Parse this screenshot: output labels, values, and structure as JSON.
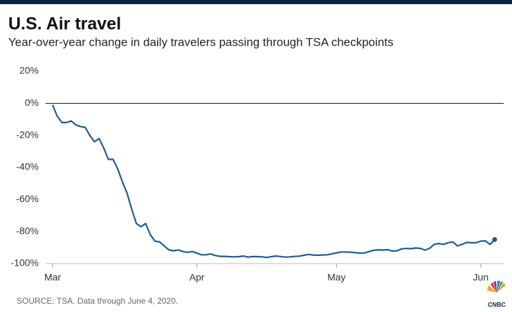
{
  "chart_data": {
    "type": "line",
    "title": "U.S. Air travel",
    "subtitle": "Year-over-year change in daily travelers passing through TSA checkpoints",
    "source": "SOURCE: TSA. Data through June 4, 2020.",
    "logo": "CNBC",
    "categories": [
      "Mar",
      null,
      null,
      null,
      null,
      null,
      null,
      null,
      null,
      null,
      null,
      null,
      null,
      null,
      null,
      null,
      null,
      null,
      null,
      null,
      null,
      null,
      null,
      null,
      null,
      null,
      null,
      null,
      null,
      null,
      null,
      "Apr",
      null,
      null,
      null,
      null,
      null,
      null,
      null,
      null,
      null,
      null,
      null,
      null,
      null,
      null,
      null,
      null,
      null,
      null,
      null,
      null,
      null,
      null,
      null,
      null,
      null,
      null,
      null,
      null,
      null,
      "May",
      null,
      null,
      null,
      null,
      null,
      null,
      null,
      null,
      null,
      null,
      null,
      null,
      null,
      null,
      null,
      null,
      null,
      null,
      null,
      null,
      null,
      null,
      null,
      null,
      null,
      null,
      null,
      null,
      null,
      null,
      "Jun",
      null,
      null,
      null
    ],
    "values": [
      -1,
      -8,
      -12,
      -12,
      -11,
      -13.5,
      -14.5,
      -15,
      -20,
      -24,
      -22,
      -28,
      -35,
      -35,
      -41,
      -49,
      -56,
      -66,
      -75,
      -77,
      -75,
      -82,
      -86,
      -86.5,
      -89,
      -91.5,
      -92,
      -91.5,
      -92.5,
      -93,
      -92.5,
      -93.5,
      -94.5,
      -94.5,
      -94,
      -95,
      -95.5,
      -95.5,
      -95.7,
      -95.8,
      -95.7,
      -95.3,
      -96,
      -95.6,
      -95.7,
      -95.8,
      -96.2,
      -95.7,
      -95.3,
      -95.6,
      -96,
      -95.8,
      -95.5,
      -95.4,
      -94.8,
      -94.3,
      -94.7,
      -94.8,
      -94.6,
      -94.5,
      -94,
      -93.3,
      -92.8,
      -92.8,
      -92.9,
      -93.2,
      -93.5,
      -93.4,
      -92.5,
      -91.7,
      -91.4,
      -91.6,
      -91.3,
      -92.2,
      -92,
      -90.8,
      -90.6,
      -90.7,
      -90.3,
      -90.5,
      -91.6,
      -90.5,
      -88,
      -87.5,
      -88,
      -87,
      -86.5,
      -89,
      -88,
      -86.8,
      -87,
      -87,
      -86,
      -85.8,
      -88,
      -85
    ],
    "color": "#1a5a96",
    "ylim": [
      -100,
      20
    ],
    "yticks": [
      {
        "value": 20,
        "label": "20%"
      },
      {
        "value": 0,
        "label": "0%"
      },
      {
        "value": -20,
        "label": "-20%"
      },
      {
        "value": -40,
        "label": "-40%"
      },
      {
        "value": -60,
        "label": "-60%"
      },
      {
        "value": -80,
        "label": "-80%"
      },
      {
        "value": -100,
        "label": "-100%"
      }
    ],
    "grid": false
  }
}
